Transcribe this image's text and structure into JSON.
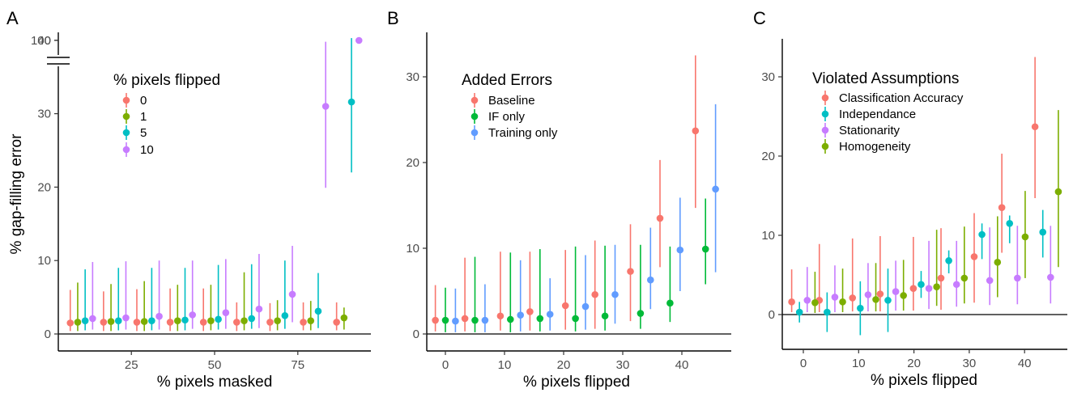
{
  "chart_data": [
    {
      "panel": "A",
      "type": "scatter",
      "xlabel": "% pixels masked",
      "ylabel": "% gap-filling error",
      "xlim": [
        5,
        95
      ],
      "ylim": [
        0,
        100
      ],
      "axis_break": [
        45,
        100
      ],
      "x_ticks": [
        25,
        50,
        75
      ],
      "y_ticks": [
        0,
        10,
        20,
        30,
        40,
        100
      ],
      "x": [
        10,
        20,
        30,
        40,
        50,
        60,
        70,
        80,
        90
      ],
      "legend_title": "% pixels flipped",
      "hline": 0,
      "series": [
        {
          "name": "0",
          "color": "#F8766D",
          "values": [
            1.5,
            1.6,
            1.6,
            1.6,
            1.6,
            1.6,
            1.6,
            1.6,
            1.6
          ],
          "low": [
            0.4,
            0.4,
            0.4,
            0.4,
            0.4,
            0.4,
            0.4,
            0.5,
            0.5
          ],
          "high": [
            6.0,
            5.8,
            6.1,
            6.2,
            6.2,
            4.3,
            4.2,
            4.3,
            4.3
          ]
        },
        {
          "name": "1",
          "color": "#7CAE00",
          "values": [
            1.6,
            1.7,
            1.7,
            1.8,
            1.8,
            1.8,
            1.8,
            1.8,
            2.2
          ],
          "low": [
            0.4,
            0.4,
            0.4,
            0.4,
            0.5,
            0.5,
            0.5,
            0.5,
            0.6
          ],
          "high": [
            7.0,
            6.8,
            7.2,
            6.7,
            6.7,
            8.4,
            4.6,
            4.5,
            3.6
          ]
        },
        {
          "name": "5",
          "color": "#00BFC4",
          "values": [
            1.8,
            1.8,
            1.8,
            1.9,
            2.0,
            2.1,
            2.5,
            3.1,
            31.6
          ],
          "low": [
            0.5,
            0.5,
            0.5,
            0.5,
            0.6,
            0.7,
            0.7,
            0.8,
            22.0
          ],
          "high": [
            8.8,
            9.0,
            9.0,
            9.0,
            9.4,
            9.5,
            10.0,
            8.3,
            40.3
          ]
        },
        {
          "name": "10",
          "color": "#C77CFF",
          "values": [
            2.1,
            2.2,
            2.4,
            2.6,
            2.9,
            3.4,
            5.4,
            31.0,
            100
          ],
          "low": [
            0.6,
            0.6,
            0.6,
            0.7,
            0.7,
            0.8,
            1.6,
            19.9,
            100
          ],
          "high": [
            9.8,
            9.9,
            10.0,
            10.0,
            10.2,
            10.9,
            12.0,
            39.8,
            100
          ]
        }
      ]
    },
    {
      "panel": "B",
      "type": "scatter",
      "xlabel": "% pixels flipped",
      "ylabel": "",
      "xlim": [
        -3,
        48
      ],
      "ylim": [
        -1,
        34
      ],
      "x_ticks": [
        0,
        10,
        20,
        30,
        40
      ],
      "y_ticks": [
        0,
        10,
        20,
        30
      ],
      "x": [
        0,
        5,
        11,
        16,
        22,
        27,
        33,
        38,
        44
      ],
      "legend_title": "Added Errors",
      "hline": 0,
      "series": [
        {
          "name": "Baseline",
          "color": "#F8766D",
          "values": [
            1.6,
            1.8,
            2.1,
            2.6,
            3.3,
            4.6,
            7.3,
            13.5,
            23.7
          ],
          "low": [
            0.3,
            0.3,
            0.4,
            0.4,
            0.5,
            0.6,
            1.5,
            7.8,
            14.7
          ],
          "high": [
            5.7,
            8.9,
            9.6,
            9.6,
            9.8,
            10.9,
            12.8,
            20.3,
            32.5
          ]
        },
        {
          "name": "IF only",
          "color": "#00BA38",
          "values": [
            1.6,
            1.6,
            1.7,
            1.8,
            1.8,
            2.1,
            2.4,
            3.6,
            9.9
          ],
          "low": [
            0.2,
            0.2,
            0.2,
            0.3,
            0.3,
            0.4,
            0.6,
            1.4,
            5.8
          ],
          "high": [
            5.4,
            9.0,
            9.5,
            9.9,
            10.2,
            10.3,
            10.4,
            10.2,
            15.8
          ]
        },
        {
          "name": "Training only",
          "color": "#619CFF",
          "values": [
            1.5,
            1.6,
            2.2,
            2.3,
            3.2,
            4.6,
            6.3,
            9.8,
            16.9
          ],
          "low": [
            0.2,
            0.2,
            0.3,
            0.4,
            0.5,
            1.2,
            2.9,
            5.0,
            7.2
          ],
          "high": [
            5.3,
            5.8,
            8.6,
            6.5,
            9.2,
            10.4,
            12.4,
            15.9,
            26.8
          ]
        }
      ]
    },
    {
      "panel": "C",
      "type": "scatter",
      "xlabel": "% pixels flipped",
      "ylabel": "",
      "xlim": [
        -3,
        48
      ],
      "ylim": [
        -4,
        34
      ],
      "x_ticks": [
        0,
        10,
        20,
        30,
        40
      ],
      "y_ticks": [
        0,
        10,
        20,
        30
      ],
      "x": [
        0,
        5,
        11,
        16,
        22,
        27,
        33,
        38,
        44
      ],
      "legend_title": "Violated Assumptions",
      "hline": 0,
      "series": [
        {
          "name": "Classification Accuracy",
          "color": "#F8766D",
          "values": [
            1.6,
            1.8,
            2.1,
            2.6,
            3.3,
            4.6,
            7.3,
            13.5,
            23.7
          ],
          "low": [
            0.3,
            0.3,
            0.4,
            0.4,
            0.5,
            0.6,
            1.5,
            7.8,
            14.7
          ],
          "high": [
            5.7,
            8.9,
            9.6,
            9.9,
            9.8,
            10.9,
            12.8,
            20.3,
            32.5
          ]
        },
        {
          "name": "Independance",
          "color": "#00BFC4",
          "values": [
            0.3,
            0.3,
            0.8,
            1.8,
            3.8,
            6.8,
            10.1,
            11.5,
            10.4
          ],
          "low": [
            -1.0,
            -2.2,
            -2.6,
            -2.2,
            2.1,
            5.2,
            7.0,
            9.0,
            7.2
          ],
          "high": [
            1.6,
            2.8,
            4.2,
            5.8,
            5.5,
            8.1,
            11.5,
            12.5,
            13.2
          ]
        },
        {
          "name": "Stationarity",
          "color": "#C77CFF",
          "values": [
            1.8,
            2.2,
            2.5,
            2.9,
            3.3,
            3.8,
            4.3,
            4.6,
            4.7
          ],
          "low": [
            0.3,
            0.3,
            0.4,
            0.5,
            0.7,
            1.0,
            1.2,
            1.3,
            1.4
          ],
          "high": [
            6.0,
            6.2,
            6.5,
            6.8,
            9.3,
            9.3,
            11.0,
            11.2,
            11.2
          ]
        },
        {
          "name": "Homogeneity",
          "color": "#7CAE00",
          "values": [
            1.5,
            1.6,
            1.9,
            2.4,
            3.5,
            4.6,
            6.6,
            9.8,
            15.5
          ],
          "low": [
            0.2,
            0.3,
            0.4,
            0.5,
            1.1,
            1.4,
            2.2,
            4.6,
            6.0
          ],
          "high": [
            5.4,
            5.8,
            6.5,
            6.9,
            10.7,
            11.1,
            12.4,
            15.6,
            25.8
          ]
        }
      ]
    }
  ]
}
